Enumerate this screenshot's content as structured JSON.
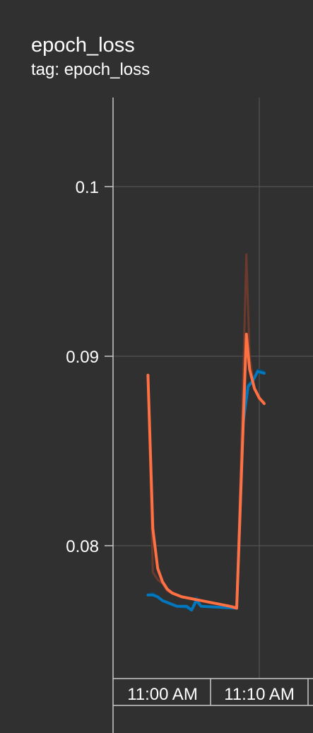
{
  "header": {
    "title": "epoch_loss",
    "subtitle": "tag: epoch_loss"
  },
  "colors": {
    "background": "#303030",
    "grid": "#5a5a5a",
    "axis": "#c8c8c8",
    "text": "#ffffff",
    "train_smoothed": "#ff7043",
    "train_raw": "#6b3a2c",
    "validation_smoothed": "#0277bd",
    "validation_raw": "#104766"
  },
  "chart_data": {
    "type": "line",
    "title": "epoch_loss",
    "subtitle": "tag: epoch_loss",
    "xlabel": "",
    "ylabel": "",
    "x_axis": "wall-clock time",
    "y_ticks": [
      "0.1",
      "0.09",
      "0.08"
    ],
    "x_tick_labels": [
      "11:00 AM",
      "11:10 AM"
    ],
    "xlim": [
      "10:56 AM",
      "11:12 AM"
    ],
    "ylim": [
      0.0745,
      0.1045
    ],
    "grid": true,
    "series": [
      {
        "role": "train_raw",
        "color_key": "train_raw",
        "points": [
          [
            "10:58:30",
            0.089
          ],
          [
            "10:59:00",
            0.0786
          ],
          [
            "10:59:30",
            0.0782
          ],
          [
            "11:00:00",
            0.078
          ],
          [
            "11:00:30",
            0.0776
          ],
          [
            "11:01:00",
            0.0775
          ],
          [
            "11:02:00",
            0.0773
          ],
          [
            "11:03:00",
            0.0772
          ],
          [
            "11:04:00",
            0.0771
          ],
          [
            "11:05:00",
            0.077
          ],
          [
            "11:06:00",
            0.0769
          ],
          [
            "11:07:00",
            0.0768
          ],
          [
            "11:07:40",
            0.0768
          ],
          [
            "11:08:20",
            0.089
          ],
          [
            "11:08:40",
            0.096
          ],
          [
            "11:09:00",
            0.09
          ],
          [
            "11:09:30",
            0.0883
          ],
          [
            "11:10:00",
            0.0877
          ],
          [
            "11:10:30",
            0.0876
          ]
        ]
      },
      {
        "role": "train_smoothed",
        "color_key": "train_smoothed",
        "points": [
          [
            "10:58:30",
            0.089
          ],
          [
            "10:59:00",
            0.0809
          ],
          [
            "10:59:30",
            0.0788
          ],
          [
            "11:00:00",
            0.0781
          ],
          [
            "11:00:30",
            0.0777
          ],
          [
            "11:01:00",
            0.0775
          ],
          [
            "11:02:00",
            0.0773
          ],
          [
            "11:03:00",
            0.0772
          ],
          [
            "11:04:00",
            0.0771
          ],
          [
            "11:05:00",
            0.077
          ],
          [
            "11:06:00",
            0.0769
          ],
          [
            "11:07:00",
            0.0768
          ],
          [
            "11:07:40",
            0.0767
          ],
          [
            "11:08:40",
            0.0913
          ],
          [
            "11:09:00",
            0.0893
          ],
          [
            "11:09:30",
            0.0883
          ],
          [
            "11:10:00",
            0.0878
          ],
          [
            "11:10:30",
            0.0875
          ]
        ]
      },
      {
        "role": "validation_raw",
        "color_key": "validation_raw",
        "points": [
          [
            "10:58:30",
            0.0774
          ],
          [
            "10:59:00",
            0.0775
          ],
          [
            "10:59:30",
            0.0773
          ],
          [
            "11:00:00",
            0.0771
          ],
          [
            "11:00:30",
            0.077
          ],
          [
            "11:01:00",
            0.0769
          ],
          [
            "11:01:30",
            0.0768
          ],
          [
            "11:02:30",
            0.0767
          ],
          [
            "11:03:00",
            0.0766
          ],
          [
            "11:03:30",
            0.0773
          ],
          [
            "11:04:00",
            0.0768
          ],
          [
            "11:07:40",
            0.0767
          ],
          [
            "11:08:20",
            0.0866
          ],
          [
            "11:08:50",
            0.0885
          ],
          [
            "11:09:20",
            0.0887
          ],
          [
            "11:09:50",
            0.0893
          ],
          [
            "11:10:30",
            0.0892
          ]
        ]
      },
      {
        "role": "validation_smoothed",
        "color_key": "validation_smoothed",
        "points": [
          [
            "10:58:30",
            0.0774
          ],
          [
            "10:59:00",
            0.0774
          ],
          [
            "10:59:30",
            0.0773
          ],
          [
            "11:00:00",
            0.0771
          ],
          [
            "11:00:30",
            0.077
          ],
          [
            "11:01:00",
            0.0769
          ],
          [
            "11:01:30",
            0.0768
          ],
          [
            "11:02:30",
            0.0768
          ],
          [
            "11:03:00",
            0.0766
          ],
          [
            "11:03:30",
            0.0771
          ],
          [
            "11:04:00",
            0.0768
          ],
          [
            "11:07:40",
            0.0767
          ],
          [
            "11:08:20",
            0.0865
          ],
          [
            "11:08:50",
            0.0884
          ],
          [
            "11:09:20",
            0.0887
          ],
          [
            "11:09:50",
            0.0892
          ],
          [
            "11:10:30",
            0.0891
          ]
        ]
      }
    ]
  }
}
